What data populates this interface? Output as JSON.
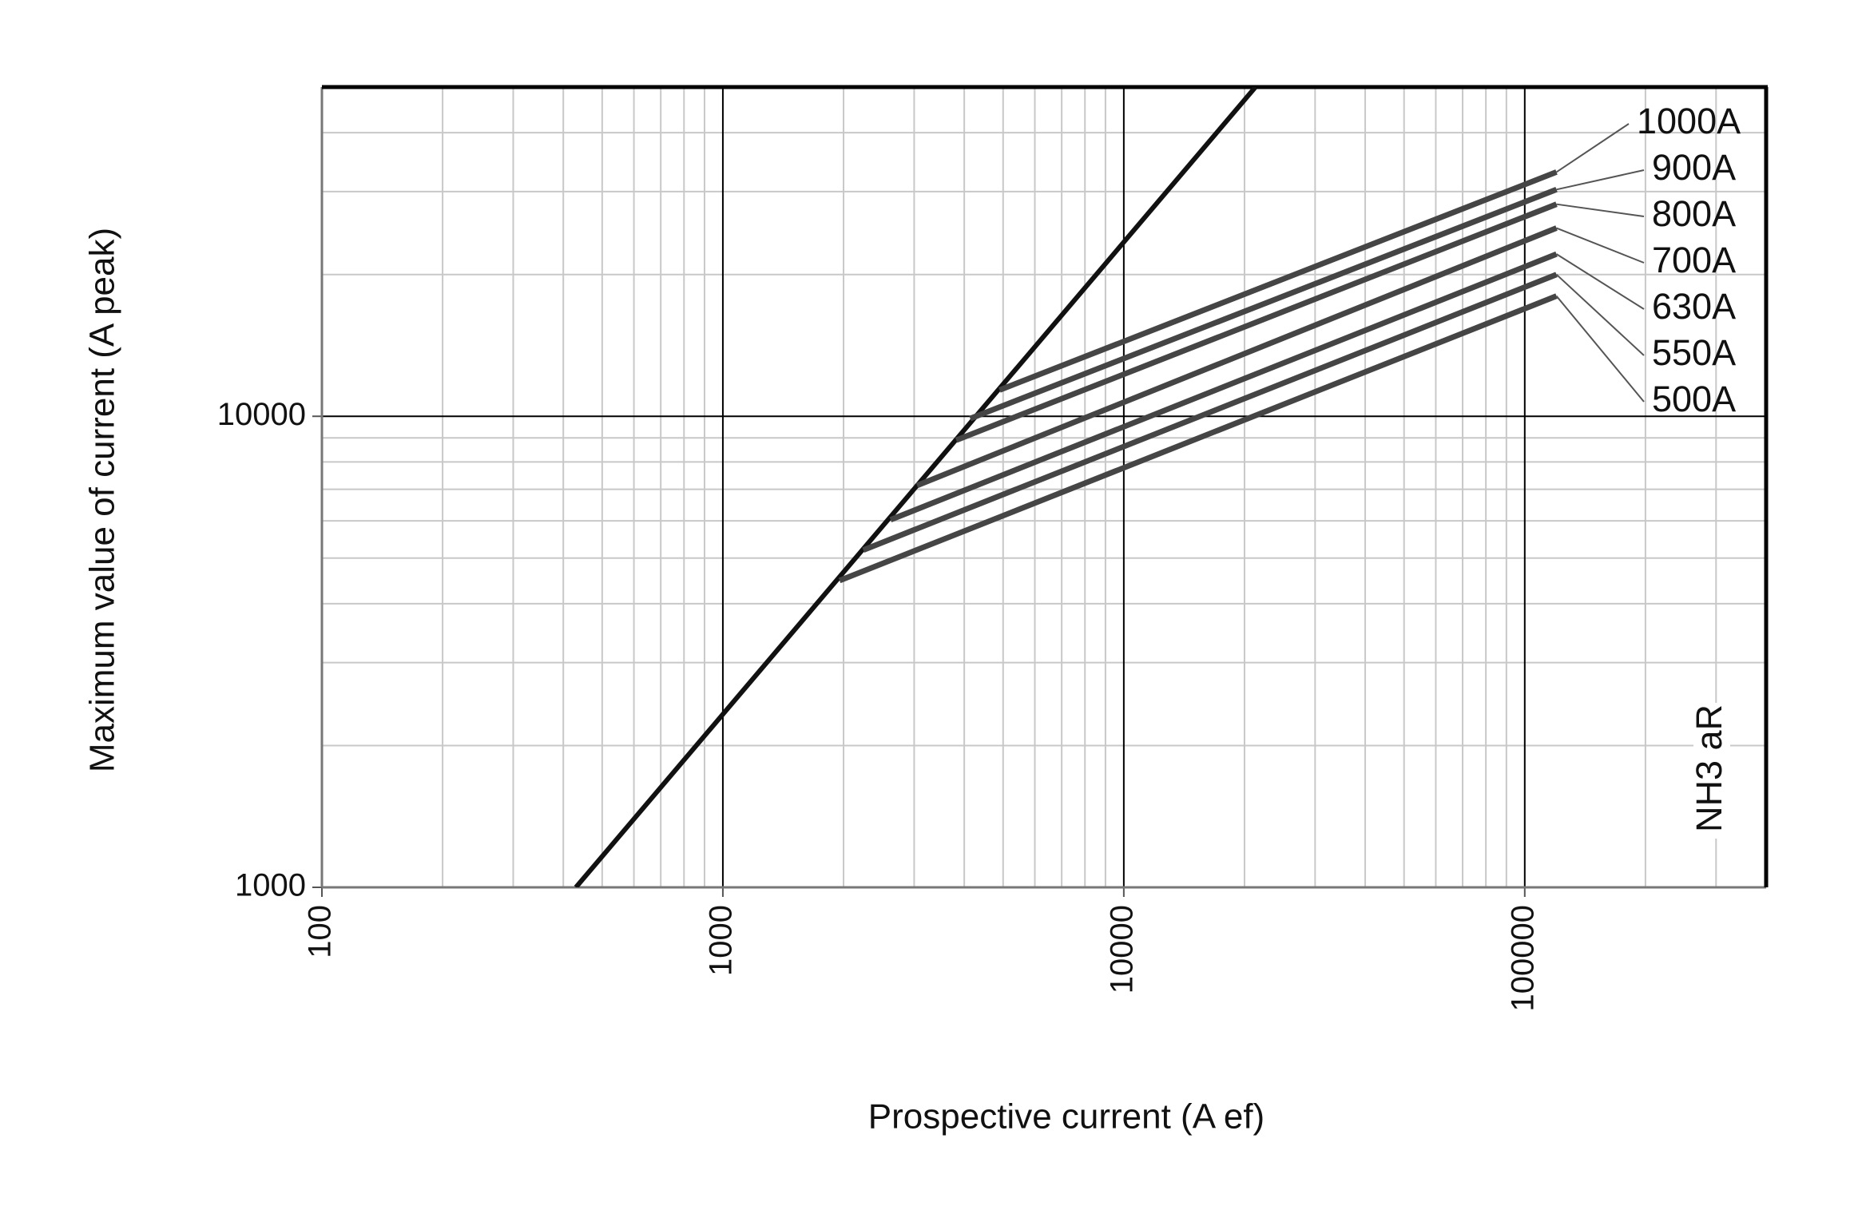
{
  "chart_data": {
    "type": "line",
    "x_label": "Prospective current (A ef)",
    "y_label": "Maximum value of current (A peak)",
    "annotation": "NH3 aR",
    "log_x": true,
    "log_y": true,
    "grid": true,
    "xlim": [
      100,
      400000
    ],
    "ylim": [
      1000,
      50000
    ],
    "xticks": [
      100,
      1000,
      10000,
      100000
    ],
    "yticks": [
      1000,
      10000
    ],
    "series": [
      {
        "color": "#111111",
        "x": [
          430,
          21300
        ],
        "values": [
          1000,
          50000
        ]
      },
      {
        "name": "1000A",
        "color": "#454545",
        "x": [
          4900,
          120000
        ],
        "values": [
          11370,
          33000
        ]
      },
      {
        "name": "900A",
        "color": "#454545",
        "x": [
          4140,
          120000
        ],
        "values": [
          9890,
          30300
        ]
      },
      {
        "name": "800A",
        "color": "#454545",
        "x": [
          3820,
          120000
        ],
        "values": [
          8900,
          28200
        ]
      },
      {
        "name": "700A",
        "color": "#454545",
        "x": [
          3050,
          120000
        ],
        "values": [
          7130,
          25100
        ]
      },
      {
        "name": "630A",
        "color": "#454545",
        "x": [
          2620,
          120000
        ],
        "values": [
          6030,
          22100
        ]
      },
      {
        "name": "550A",
        "color": "#454545",
        "x": [
          2240,
          120000
        ],
        "values": [
          5200,
          20000
        ]
      },
      {
        "name": "500A",
        "color": "#454545",
        "x": [
          1955,
          120000
        ],
        "values": [
          4480,
          18000
        ]
      }
    ]
  }
}
